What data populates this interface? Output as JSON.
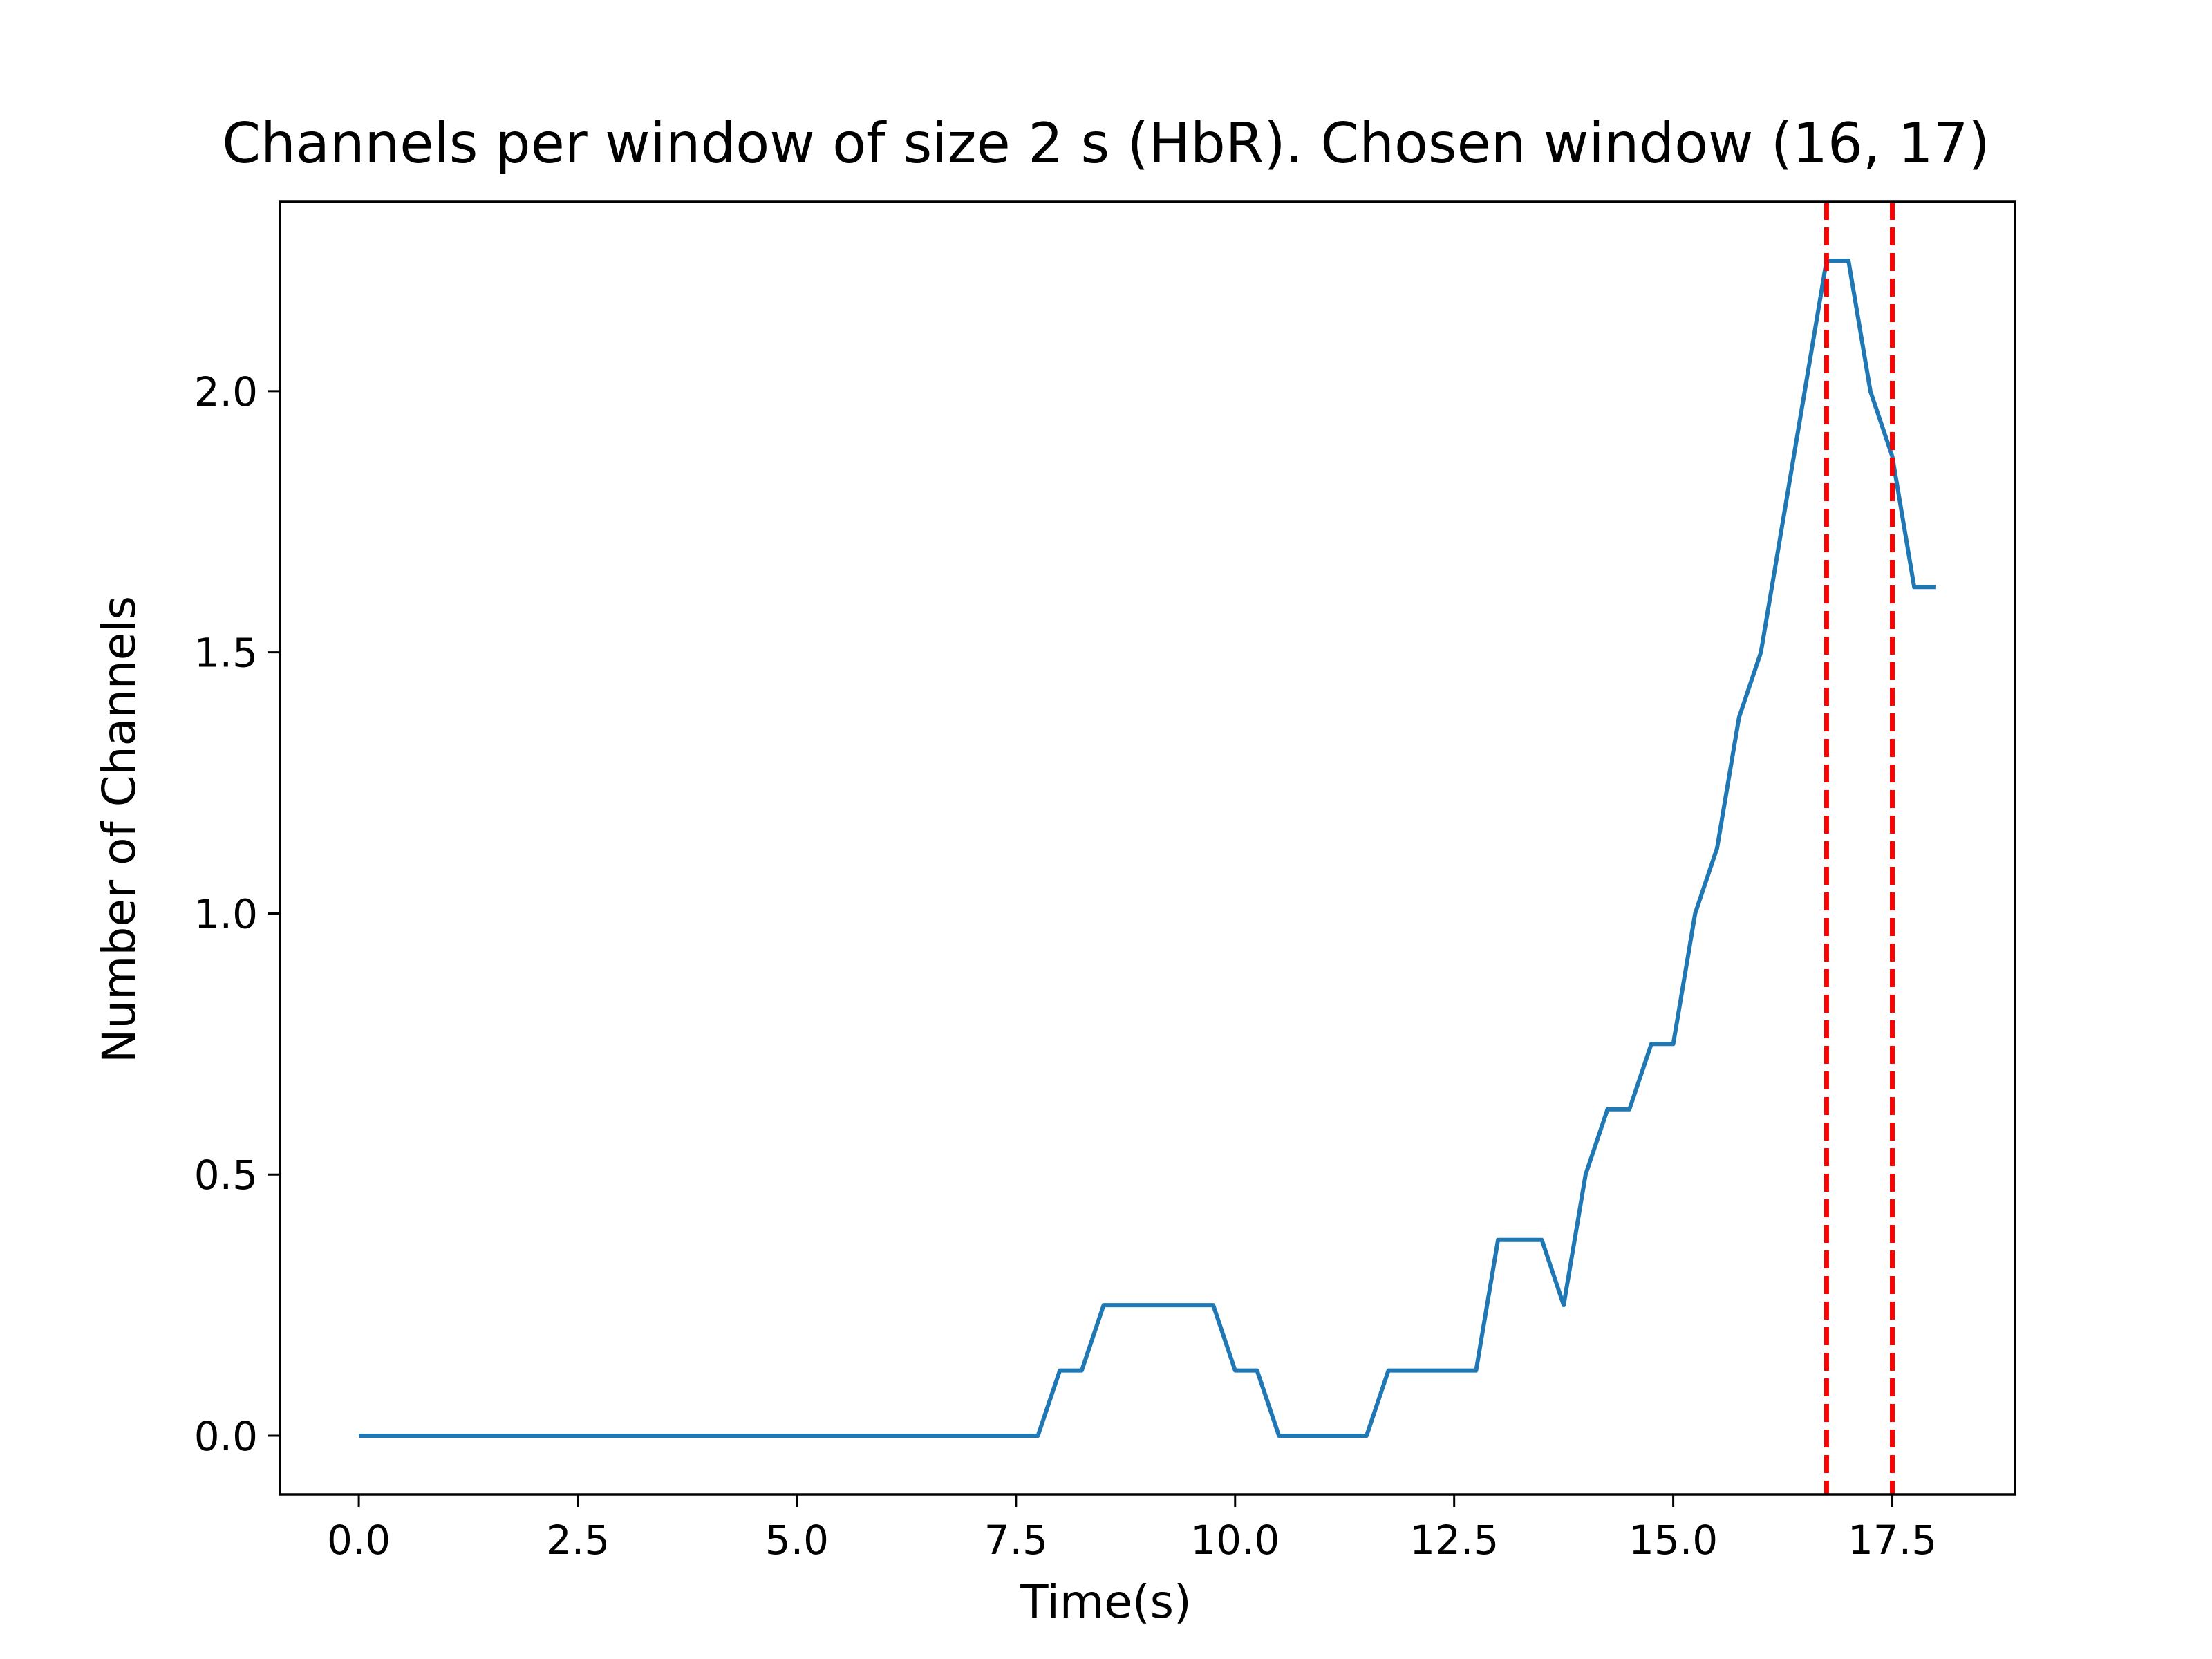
{
  "chart_data": {
    "type": "line",
    "title": "Channels per window of size 2 s (HbR). Chosen window (16, 17)",
    "xlabel": "Time(s)",
    "ylabel": "Number of Channels",
    "xlim": [
      -0.9,
      18.9
    ],
    "ylim": [
      -0.1125,
      2.3625
    ],
    "xticks": [
      0.0,
      2.5,
      5.0,
      7.5,
      10.0,
      12.5,
      15.0,
      17.5
    ],
    "xtick_labels": [
      "0.0",
      "2.5",
      "5.0",
      "7.5",
      "10.0",
      "12.5",
      "15.0",
      "17.5"
    ],
    "yticks": [
      0.0,
      0.5,
      1.0,
      1.5,
      2.0
    ],
    "ytick_labels": [
      "0.0",
      "0.5",
      "1.0",
      "1.5",
      "2.0"
    ],
    "grid": false,
    "series": [
      {
        "color": "#1f77b4",
        "x": [
          0.0,
          7.75,
          8.0,
          8.25,
          8.5,
          9.75,
          10.0,
          10.25,
          10.5,
          11.5,
          11.75,
          12.75,
          13.0,
          13.5,
          13.75,
          14.0,
          14.25,
          14.5,
          14.75,
          15.0,
          15.25,
          15.5,
          15.75,
          16.0,
          16.25,
          16.5,
          16.75,
          17.0,
          17.25,
          17.5,
          17.75,
          18.0
        ],
        "y": [
          0.0,
          0.0,
          0.125,
          0.125,
          0.25,
          0.25,
          0.125,
          0.125,
          0.0,
          0.0,
          0.125,
          0.125,
          0.375,
          0.375,
          0.25,
          0.5,
          0.625,
          0.625,
          0.75,
          0.75,
          1.0,
          1.125,
          1.375,
          1.5,
          1.75,
          2.0,
          2.25,
          2.25,
          2.0,
          1.875,
          1.625,
          1.625
        ]
      }
    ],
    "vlines": [
      {
        "x": 16.75,
        "color": "#ff0000",
        "style": "dashed"
      },
      {
        "x": 17.5,
        "color": "#ff0000",
        "style": "dashed"
      }
    ]
  }
}
